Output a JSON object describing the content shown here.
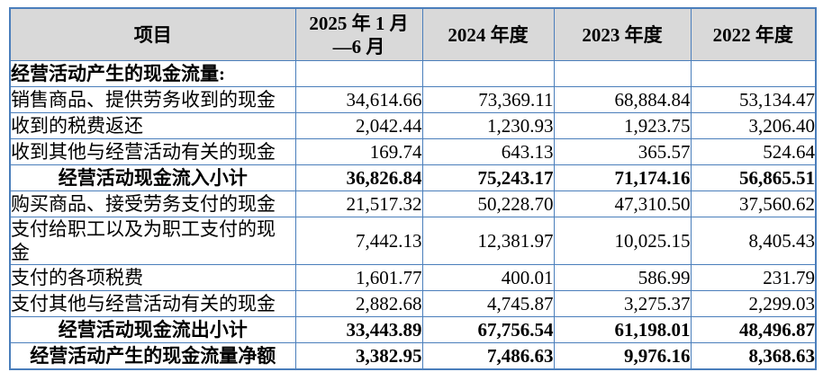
{
  "page": {
    "background": "#ffffff"
  },
  "colors": {
    "border": "#4a7ebb",
    "header_bg": "#d9d9d9",
    "text": "#000000"
  },
  "table": {
    "columns": [
      "项目",
      "2025 年 1 月\n—6 月",
      "2024 年度",
      "2023 年度",
      "2022 年度"
    ],
    "rows": [
      {
        "label": "经营活动产生的现金流量:",
        "values": [
          "",
          "",
          "",
          ""
        ],
        "bold": true,
        "label_align": "left"
      },
      {
        "label": "销售商品、提供劳务收到的现金",
        "values": [
          "34,614.66",
          "73,369.11",
          "68,884.84",
          "53,134.47"
        ],
        "bold": false,
        "label_align": "left"
      },
      {
        "label": "收到的税费返还",
        "values": [
          "2,042.44",
          "1,230.93",
          "1,923.75",
          "3,206.40"
        ],
        "bold": false,
        "label_align": "left"
      },
      {
        "label": "收到其他与经营活动有关的现金",
        "values": [
          "169.74",
          "643.13",
          "365.57",
          "524.64"
        ],
        "bold": false,
        "label_align": "left"
      },
      {
        "label": "经营活动现金流入小计",
        "values": [
          "36,826.84",
          "75,243.17",
          "71,174.16",
          "56,865.51"
        ],
        "bold": true,
        "label_align": "center"
      },
      {
        "label": "购买商品、接受劳务支付的现金",
        "values": [
          "21,517.32",
          "50,228.70",
          "47,310.50",
          "37,560.62"
        ],
        "bold": false,
        "label_align": "left"
      },
      {
        "label": "支付给职工以及为职工支付的现\n金",
        "values": [
          "7,442.13",
          "12,381.97",
          "10,025.15",
          "8,405.43"
        ],
        "bold": false,
        "label_align": "left"
      },
      {
        "label": "支付的各项税费",
        "values": [
          "1,601.77",
          "400.01",
          "586.99",
          "231.79"
        ],
        "bold": false,
        "label_align": "left"
      },
      {
        "label": "支付其他与经营活动有关的现金",
        "values": [
          "2,882.68",
          "4,745.87",
          "3,275.37",
          "2,299.03"
        ],
        "bold": false,
        "label_align": "left"
      },
      {
        "label": "经营活动现金流出小计",
        "values": [
          "33,443.89",
          "67,756.54",
          "61,198.01",
          "48,496.87"
        ],
        "bold": true,
        "label_align": "center"
      },
      {
        "label": "经营活动产生的现金流量净额",
        "values": [
          "3,382.95",
          "7,486.63",
          "9,976.16",
          "8,368.63"
        ],
        "bold": true,
        "label_align": "center"
      }
    ]
  }
}
